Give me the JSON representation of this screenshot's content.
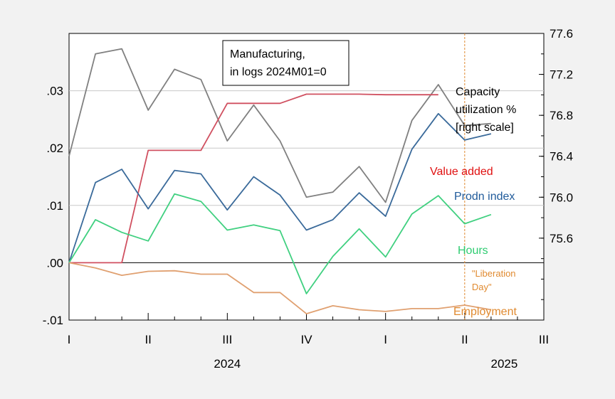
{
  "chart_data": {
    "type": "line",
    "title_box": [
      "Manufacturing,",
      "in logs 2024M01=0"
    ],
    "x_months": [
      "2024-01",
      "2024-02",
      "2024-03",
      "2024-04",
      "2024-05",
      "2024-06",
      "2024-07",
      "2024-08",
      "2024-09",
      "2024-10",
      "2024-11",
      "2024-12",
      "2025-01",
      "2025-02",
      "2025-03",
      "2025-04",
      "2025-05"
    ],
    "x_axis": {
      "range": [
        "2024-01",
        "2025-07"
      ],
      "quarter_ticks": [
        "I",
        "II",
        "III",
        "IV",
        "I",
        "II",
        "III"
      ],
      "years": [
        "2024",
        "2025"
      ]
    },
    "left_axis": {
      "ylim": [
        -0.01,
        0.04
      ],
      "ticks": [
        ".03",
        ".02",
        ".01",
        ".00",
        "-.01"
      ],
      "tick_values": [
        0.03,
        0.02,
        0.01,
        0.0,
        -0.01
      ]
    },
    "right_axis": {
      "ylim": [
        74.8,
        77.6
      ],
      "ticks": [
        "77.6",
        "77.2",
        "76.8",
        "76.4",
        "76.0",
        "75.6"
      ],
      "tick_values": [
        77.6,
        77.2,
        76.8,
        76.4,
        76.0,
        75.6
      ]
    },
    "grid": true,
    "series": [
      {
        "name_lines": [
          "Capacity",
          "utilization %",
          "[right scale]"
        ],
        "axis": "right",
        "color": "#808080",
        "values": [
          76.4,
          77.4,
          77.45,
          76.85,
          77.25,
          77.15,
          76.55,
          76.9,
          76.55,
          76.0,
          76.05,
          76.3,
          75.95,
          76.75,
          77.1,
          76.7,
          76.72
        ]
      },
      {
        "name": "Value added",
        "axis": "left",
        "color": "#d05060",
        "label_color": "#e01010",
        "values": [
          0.0,
          0.0,
          0.0,
          0.0196,
          0.0196,
          0.0196,
          0.0278,
          0.0278,
          0.0278,
          0.0294,
          0.0294,
          0.0294,
          0.0293,
          0.0293,
          0.0293,
          null,
          null
        ]
      },
      {
        "name": "Prodn index",
        "axis": "left",
        "color": "#3a6a9a",
        "label_color": "#1f5a9a",
        "values": [
          0.0,
          0.014,
          0.0163,
          0.0094,
          0.0161,
          0.0155,
          0.0092,
          0.015,
          0.0118,
          0.0057,
          0.0075,
          0.0122,
          0.0081,
          0.0198,
          0.026,
          0.0214,
          0.0225
        ]
      },
      {
        "name": "Hours",
        "axis": "left",
        "color": "#40d080",
        "label_color": "#2ecc71",
        "values": [
          0.0,
          0.0075,
          0.0053,
          0.0038,
          0.012,
          0.0107,
          0.0057,
          0.0066,
          0.0056,
          -0.0054,
          0.0011,
          0.0059,
          0.001,
          0.0085,
          0.0117,
          0.0068,
          0.0084
        ]
      },
      {
        "name": "Employment",
        "axis": "left",
        "color": "#e0a070",
        "label_color": "#e08a30",
        "values": [
          0.0,
          -0.0009,
          -0.0022,
          -0.0015,
          -0.0014,
          -0.002,
          -0.002,
          -0.0052,
          -0.0052,
          -0.0089,
          -0.0075,
          -0.0082,
          -0.0085,
          -0.008,
          -0.008,
          -0.0074,
          -0.0082
        ]
      }
    ],
    "annotations": [
      {
        "x": "2025-04",
        "text_lines": [
          "\"Liberation",
          "Day\""
        ],
        "color": "#e08a30",
        "style": "vertical dashed line"
      }
    ]
  }
}
